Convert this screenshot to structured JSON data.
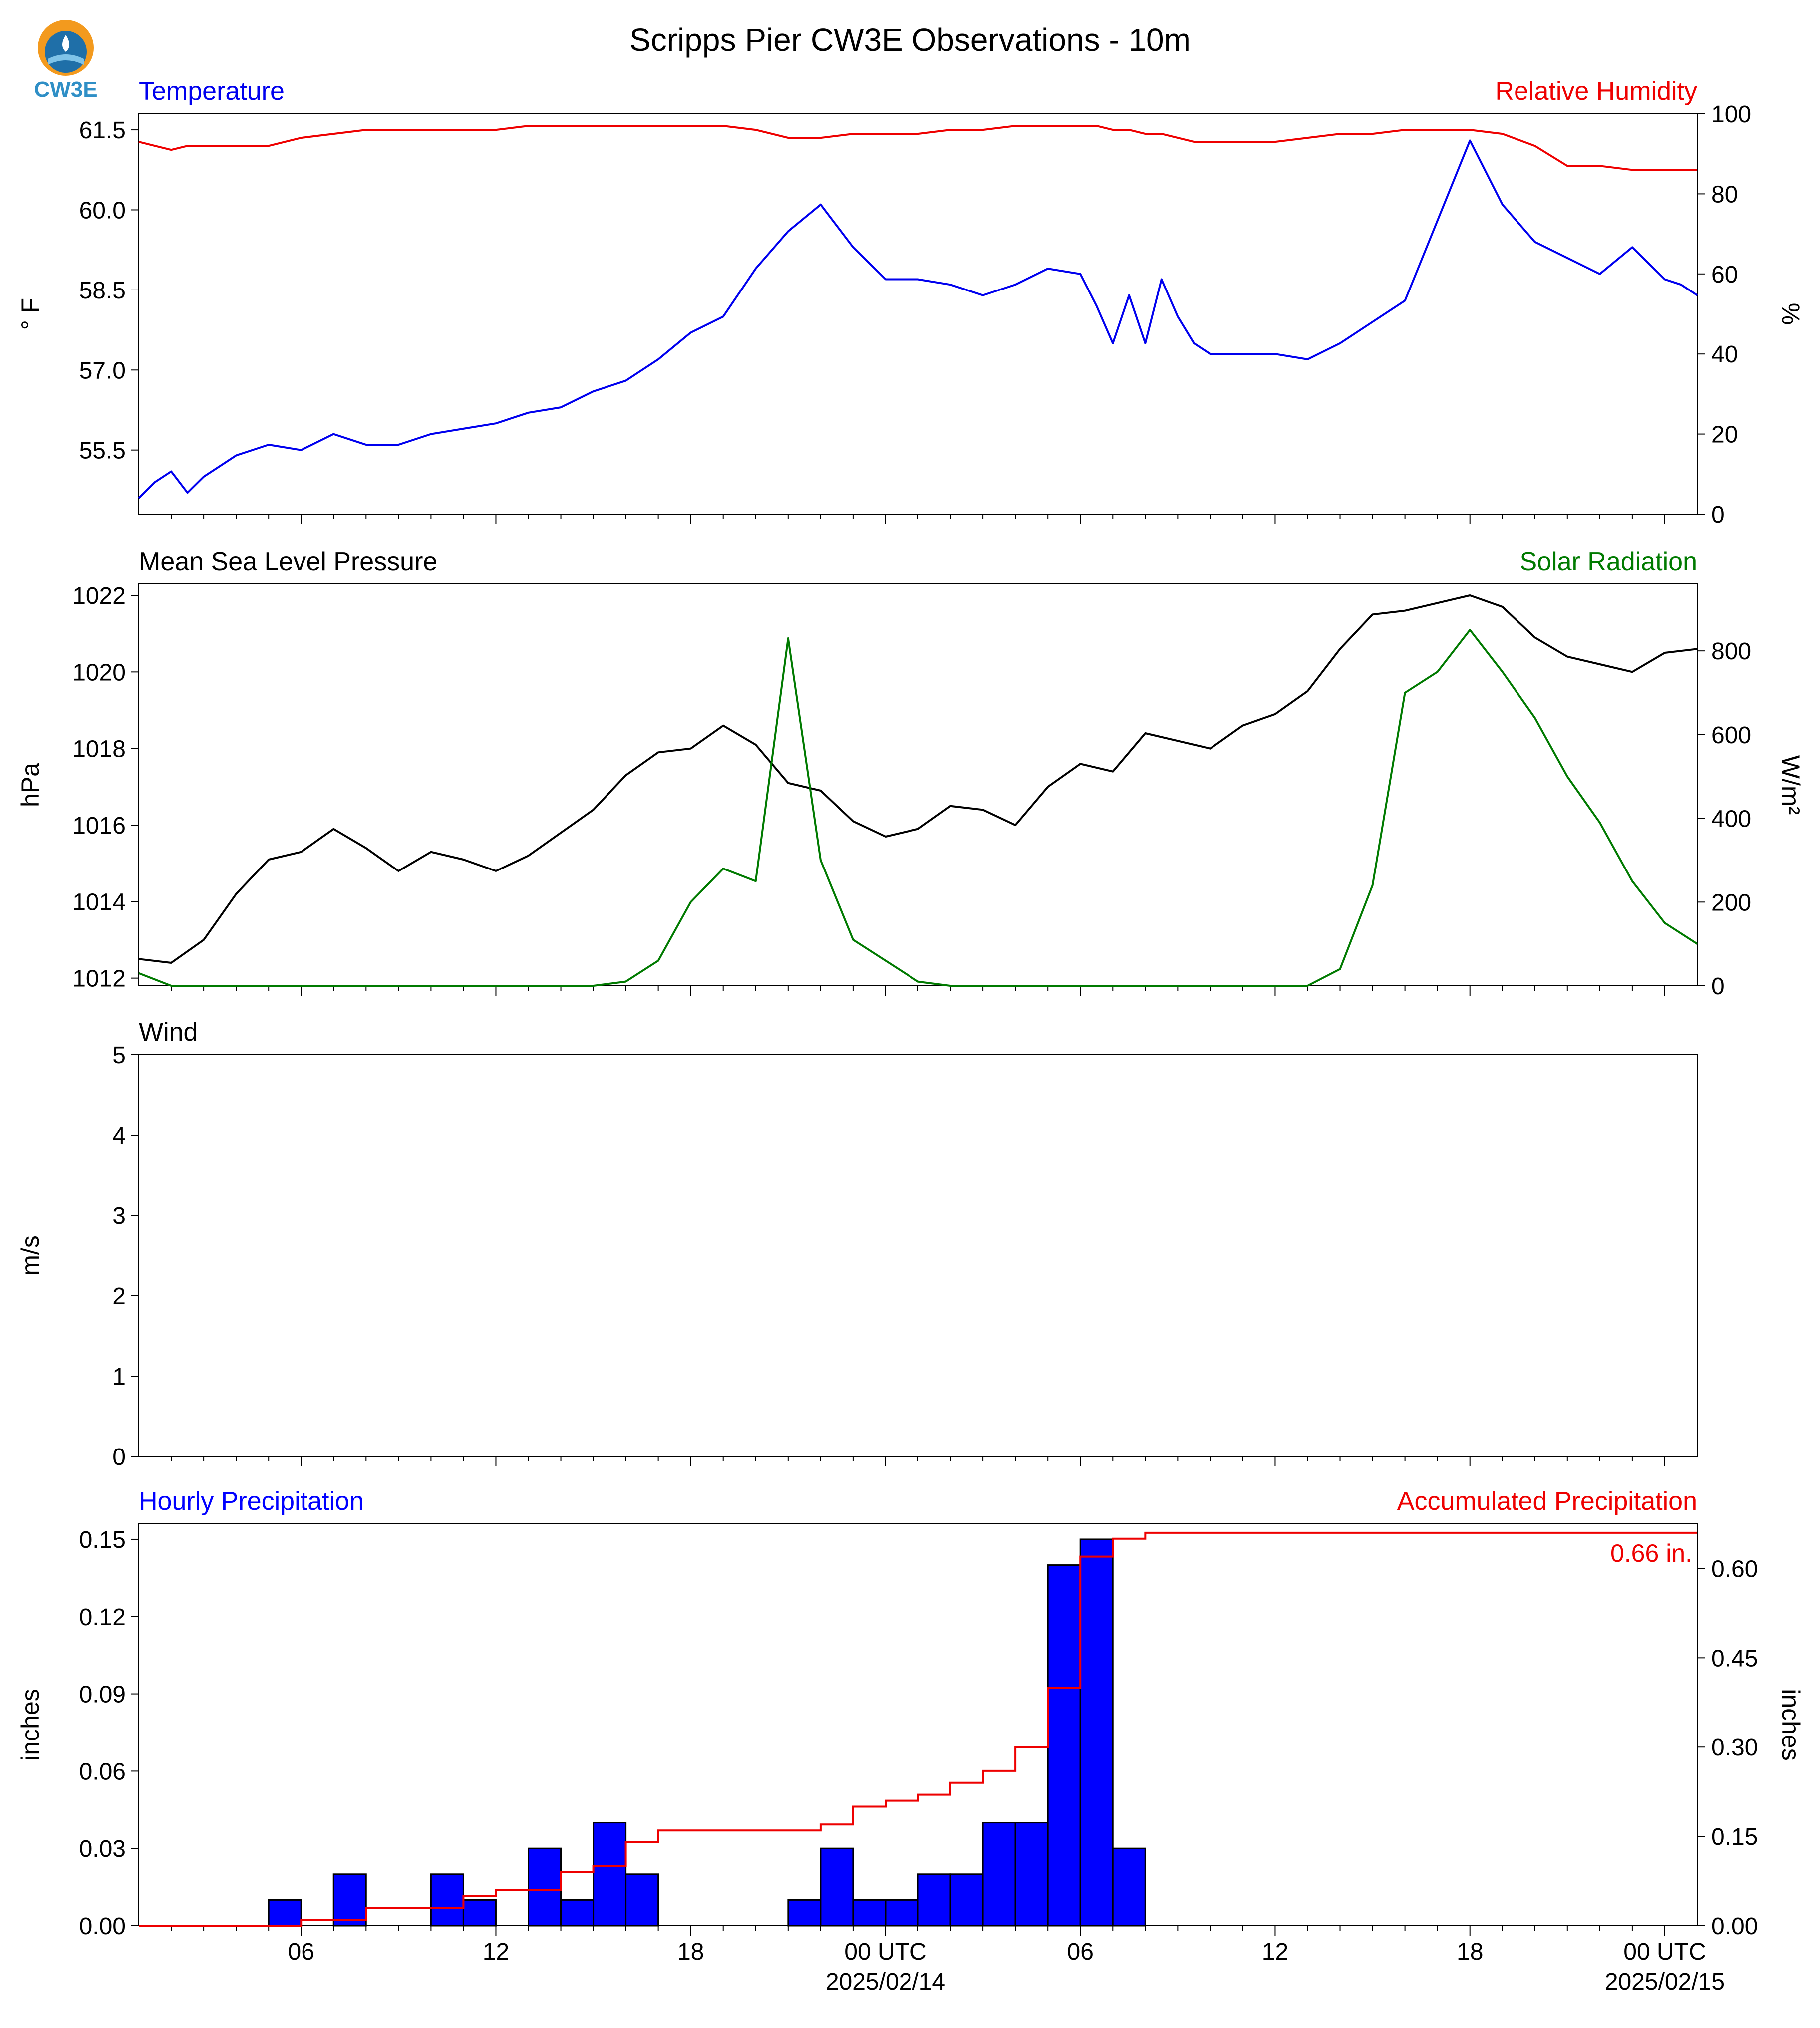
{
  "figure": {
    "title": "Scripps Pier CW3E Observations - 10m",
    "logo_text": "CW3E"
  },
  "colors": {
    "temp": "#0000ee",
    "rh": "#ee0000",
    "pressure": "#000000",
    "solar": "#007a00",
    "precip_bar": "#0000ff",
    "precip_acc": "#ee0000"
  },
  "time_axis": {
    "tick_labels": [
      "06",
      "12",
      "18",
      "00 UTC",
      "06",
      "12",
      "18",
      "00 UTC"
    ],
    "tick_hours": [
      6,
      12,
      18,
      24,
      30,
      36,
      42,
      48
    ],
    "date_labels": [
      {
        "hour": 24,
        "text": "2025/02/14"
      },
      {
        "hour": 48,
        "text": "2025/02/15"
      }
    ],
    "range_hours": [
      1,
      49
    ]
  },
  "chart_data": [
    {
      "type": "line",
      "panel": "temperature-humidity",
      "left_title": "Temperature",
      "right_title": "Relative Humidity",
      "ylabel": "° F",
      "ylabel_right": "%",
      "ylim": [
        54.3,
        61.8
      ],
      "ylim_right": [
        0,
        100
      ],
      "yticks": [
        55.5,
        57.0,
        58.5,
        60.0,
        61.5
      ],
      "yticks_right": [
        0,
        20,
        40,
        60,
        80,
        100
      ],
      "x_hours": [
        1,
        1.5,
        2,
        2.5,
        3,
        3.5,
        4,
        5,
        6,
        7,
        8,
        9,
        10,
        11,
        12,
        13,
        14,
        15,
        16,
        17,
        18,
        19,
        20,
        21,
        22,
        23,
        24,
        25,
        26,
        27,
        28,
        29,
        30,
        30.5,
        31,
        31.5,
        32,
        32.5,
        33,
        33.5,
        34,
        35,
        36,
        37,
        38,
        39,
        40,
        41,
        42,
        43,
        44,
        45,
        46,
        47,
        48,
        48.5,
        49
      ],
      "series": [
        {
          "name": "Temperature",
          "values": [
            54.6,
            54.9,
            55.1,
            54.7,
            55.0,
            55.2,
            55.4,
            55.6,
            55.5,
            55.8,
            55.6,
            55.6,
            55.8,
            55.9,
            56.0,
            56.2,
            56.3,
            56.6,
            56.8,
            57.2,
            57.7,
            58.0,
            58.9,
            59.6,
            60.1,
            59.3,
            58.7,
            58.7,
            58.6,
            58.4,
            58.6,
            58.9,
            58.8,
            58.2,
            57.5,
            58.4,
            57.5,
            58.7,
            58.0,
            57.5,
            57.3,
            57.3,
            57.3,
            57.2,
            57.5,
            57.9,
            58.3,
            59.8,
            61.3,
            60.1,
            59.4,
            59.1,
            58.8,
            59.3,
            58.7,
            58.6,
            58.4
          ]
        },
        {
          "name": "Relative Humidity",
          "values": [
            93,
            92,
            91,
            92,
            92,
            92,
            92,
            92,
            94,
            95,
            96,
            96,
            96,
            96,
            96,
            97,
            97,
            97,
            97,
            97,
            97,
            97,
            96,
            94,
            94,
            95,
            95,
            95,
            96,
            96,
            97,
            97,
            97,
            97,
            96,
            96,
            95,
            95,
            94,
            93,
            93,
            93,
            93,
            94,
            95,
            95,
            96,
            96,
            96,
            95,
            92,
            87,
            87,
            86,
            86,
            86,
            86
          ]
        }
      ]
    },
    {
      "type": "line",
      "panel": "pressure-solar",
      "left_title": "Mean Sea Level Pressure",
      "right_title": "Solar Radiation",
      "ylabel": "hPa",
      "ylabel_right": "W/m²",
      "ylim": [
        1011.8,
        1022.3
      ],
      "ylim_right": [
        0,
        960
      ],
      "yticks": [
        1012,
        1014,
        1016,
        1018,
        1020,
        1022
      ],
      "yticks_right": [
        0,
        200,
        400,
        600,
        800
      ],
      "x_hours": [
        1,
        2,
        3,
        4,
        5,
        6,
        7,
        8,
        9,
        10,
        11,
        12,
        13,
        14,
        15,
        16,
        17,
        18,
        19,
        20,
        21,
        22,
        23,
        24,
        25,
        26,
        27,
        28,
        29,
        30,
        31,
        32,
        33,
        34,
        35,
        36,
        37,
        38,
        39,
        40,
        41,
        42,
        43,
        44,
        45,
        46,
        47,
        48,
        49
      ],
      "series": [
        {
          "name": "Pressure",
          "values": [
            1012.5,
            1012.4,
            1013.0,
            1014.2,
            1015.1,
            1015.3,
            1015.9,
            1015.4,
            1014.8,
            1015.3,
            1015.1,
            1014.8,
            1015.2,
            1015.8,
            1016.4,
            1017.3,
            1017.9,
            1018.0,
            1018.6,
            1018.1,
            1017.1,
            1016.9,
            1016.1,
            1015.7,
            1015.9,
            1016.5,
            1016.4,
            1016.0,
            1017.0,
            1017.6,
            1017.4,
            1018.4,
            1018.2,
            1018.0,
            1018.6,
            1018.9,
            1019.5,
            1020.6,
            1021.5,
            1021.6,
            1021.8,
            1022.0,
            1021.7,
            1020.9,
            1020.4,
            1020.2,
            1020.0,
            1020.5,
            1020.6
          ]
        },
        {
          "name": "Solar Radiation",
          "values": [
            30,
            0,
            0,
            0,
            0,
            0,
            0,
            0,
            0,
            0,
            0,
            0,
            0,
            0,
            0,
            10,
            60,
            200,
            280,
            250,
            830,
            300,
            110,
            60,
            10,
            0,
            0,
            0,
            0,
            0,
            0,
            0,
            0,
            0,
            0,
            0,
            0,
            40,
            240,
            700,
            750,
            850,
            750,
            640,
            500,
            390,
            250,
            150,
            100
          ]
        }
      ]
    },
    {
      "type": "line",
      "panel": "wind",
      "left_title": "Wind",
      "ylabel": "m/s",
      "ylim": [
        0,
        5
      ],
      "yticks": [
        0,
        1,
        2,
        3,
        4,
        5
      ],
      "series": []
    },
    {
      "type": "bar",
      "panel": "precipitation",
      "left_title": "Hourly Precipitation",
      "right_title": "Accumulated Precipitation",
      "ylabel": "inches",
      "ylabel_right": "inches",
      "ylim": [
        0,
        0.156
      ],
      "ylim_right": [
        0,
        0.675
      ],
      "yticks": [
        0.0,
        0.03,
        0.06,
        0.09,
        0.12,
        0.15
      ],
      "yticks_right": [
        0.0,
        0.15,
        0.3,
        0.45,
        0.6
      ],
      "bar_start_hours": [
        5,
        6,
        7,
        8,
        9,
        10,
        11,
        12,
        13,
        14,
        15,
        16,
        17,
        18,
        19,
        20,
        21,
        22,
        23,
        24,
        25,
        26,
        27,
        28,
        29,
        30,
        31
      ],
      "series": [
        {
          "name": "Hourly Precipitation",
          "values": [
            0.01,
            0,
            0.02,
            0,
            0,
            0.02,
            0.01,
            0,
            0.03,
            0.01,
            0.04,
            0.02,
            0,
            0,
            0,
            0,
            0.01,
            0.03,
            0.01,
            0.01,
            0.02,
            0.02,
            0.04,
            0.04,
            0.14,
            0.15,
            0.03
          ]
        }
      ],
      "accumulated": {
        "name": "Accumulated Precipitation",
        "x_hours": [
          1,
          5,
          6,
          7,
          8,
          9,
          10,
          11,
          12,
          13,
          14,
          15,
          16,
          17,
          18,
          19,
          20,
          21,
          22,
          23,
          24,
          25,
          26,
          27,
          28,
          29,
          30,
          31,
          32,
          49
        ],
        "values": [
          0,
          0,
          0.01,
          0.01,
          0.03,
          0.03,
          0.03,
          0.05,
          0.06,
          0.06,
          0.09,
          0.1,
          0.14,
          0.16,
          0.16,
          0.16,
          0.16,
          0.16,
          0.17,
          0.2,
          0.21,
          0.22,
          0.24,
          0.26,
          0.3,
          0.4,
          0.62,
          0.65,
          0.66,
          0.66
        ]
      },
      "total_label": "0.66 in."
    }
  ]
}
